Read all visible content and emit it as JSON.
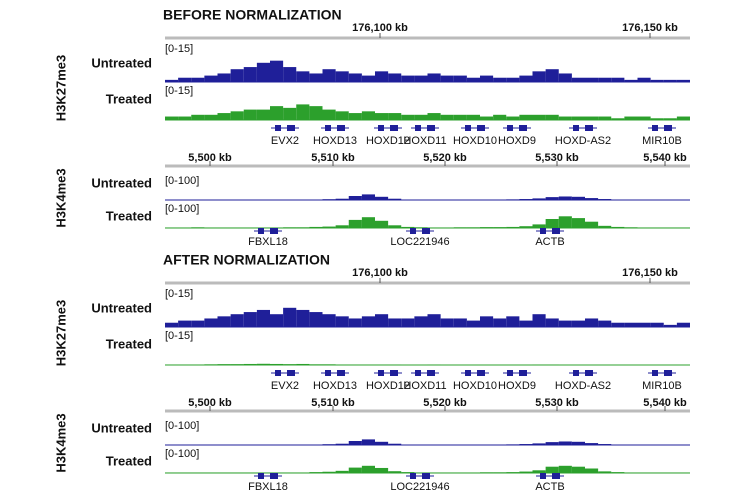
{
  "panels": [
    {
      "title": "BEFORE NORMALIZATION",
      "groups": [
        {
          "mark": "H3K27me3",
          "ticks": [
            "176,100 kb",
            "176,150 kb"
          ],
          "tracks": [
            {
              "label": "Untreated",
              "range": "[0-15]",
              "color": "#1f1f99",
              "signal": [
                1,
                2,
                2,
                3,
                4,
                6,
                7,
                9,
                10,
                7,
                5,
                4,
                6,
                5,
                4,
                3,
                5,
                4,
                3,
                3,
                4,
                3,
                3,
                2,
                3,
                2,
                2,
                3,
                5,
                6,
                4,
                2,
                2,
                2,
                2,
                1,
                2,
                1,
                1,
                1
              ]
            },
            {
              "label": "Treated",
              "range": "[0-15]",
              "color": "#2ca02c",
              "signal": [
                2,
                2,
                3,
                3,
                4,
                5,
                6,
                6,
                8,
                7,
                9,
                8,
                6,
                5,
                4,
                5,
                4,
                4,
                3,
                3,
                4,
                3,
                3,
                3,
                2,
                3,
                2,
                3,
                3,
                3,
                2,
                2,
                2,
                2,
                1,
                2,
                2,
                1,
                1,
                2
              ]
            }
          ],
          "genes": [
            "EVX2",
            "HOXD13",
            "HOXD12",
            "HOXD11",
            "HOXD10",
            "HOXD9",
            "HOXD-AS2",
            "MIR10B"
          ]
        },
        {
          "mark": "H3K4me3",
          "ticks": [
            "5,500 kb",
            "5,510 kb",
            "5,520 kb",
            "5,530 kb",
            "5,540 kb"
          ],
          "tracks": [
            {
              "label": "Untreated",
              "range": "[0-100]",
              "color": "#1f1f99",
              "signal": [
                2,
                2,
                2,
                2,
                2,
                2,
                2,
                2,
                2,
                2,
                3,
                3,
                5,
                8,
                25,
                35,
                20,
                8,
                3,
                2,
                2,
                2,
                2,
                2,
                3,
                3,
                4,
                6,
                10,
                18,
                22,
                20,
                12,
                6,
                3,
                2,
                2,
                2,
                2,
                2
              ]
            },
            {
              "label": "Treated",
              "range": "[0-100]",
              "color": "#2ca02c",
              "signal": [
                3,
                3,
                4,
                3,
                3,
                3,
                3,
                3,
                3,
                4,
                4,
                6,
                8,
                15,
                45,
                60,
                40,
                15,
                6,
                4,
                3,
                3,
                4,
                4,
                5,
                5,
                6,
                10,
                20,
                50,
                65,
                55,
                35,
                12,
                6,
                4,
                3,
                3,
                3,
                3
              ]
            }
          ],
          "genes": [
            "FBXL18",
            "LOC221946",
            "ACTB"
          ]
        }
      ]
    },
    {
      "title": "AFTER NORMALIZATION",
      "groups": [
        {
          "mark": "H3K27me3",
          "ticks": [
            "176,100 kb",
            "176,150 kb"
          ],
          "tracks": [
            {
              "label": "Untreated",
              "range": "[0-15]",
              "color": "#1f1f99",
              "signal": [
                2,
                3,
                3,
                4,
                5,
                6,
                7,
                8,
                6,
                9,
                8,
                7,
                6,
                5,
                4,
                5,
                6,
                4,
                4,
                5,
                6,
                4,
                4,
                3,
                5,
                4,
                5,
                3,
                6,
                4,
                3,
                3,
                4,
                3,
                2,
                2,
                2,
                2,
                1,
                2
              ]
            },
            {
              "label": "Treated",
              "range": "[0-15]",
              "color": "#2ca02c",
              "signal": [
                0.3,
                0.3,
                0.3,
                0.4,
                0.5,
                0.5,
                0.6,
                0.7,
                0.6,
                0.5,
                0.6,
                0.4,
                0.4,
                0.3,
                0.3,
                0.3,
                0.3,
                0.3,
                0.2,
                0.2,
                0.3,
                0.2,
                0.2,
                0.2,
                0.2,
                0.2,
                0.2,
                0.2,
                0.3,
                0.3,
                0.2,
                0.2,
                0.2,
                0.2,
                0.1,
                0.2,
                0.2,
                0.1,
                0.1,
                0.1
              ]
            }
          ],
          "genes": [
            "EVX2",
            "HOXD13",
            "HOXD12",
            "HOXD11",
            "HOXD10",
            "HOXD9",
            "HOXD-AS2",
            "MIR10B"
          ]
        },
        {
          "mark": "H3K4me3",
          "ticks": [
            "5,500 kb",
            "5,510 kb",
            "5,520 kb",
            "5,530 kb",
            "5,540 kb"
          ],
          "tracks": [
            {
              "label": "Untreated",
              "range": "[0-100]",
              "color": "#1f1f99",
              "signal": [
                2,
                2,
                2,
                2,
                2,
                2,
                2,
                2,
                2,
                2,
                3,
                3,
                5,
                8,
                25,
                35,
                20,
                8,
                3,
                2,
                2,
                2,
                2,
                2,
                3,
                3,
                4,
                6,
                10,
                18,
                22,
                20,
                12,
                6,
                3,
                2,
                2,
                2,
                2,
                2
              ]
            },
            {
              "label": "Treated",
              "range": "[0-100]",
              "color": "#2ca02c",
              "signal": [
                3,
                3,
                3,
                3,
                3,
                3,
                3,
                3,
                3,
                3,
                3,
                5,
                7,
                12,
                30,
                40,
                28,
                10,
                5,
                3,
                3,
                3,
                3,
                3,
                4,
                4,
                5,
                8,
                15,
                35,
                40,
                35,
                25,
                9,
                5,
                3,
                3,
                3,
                3,
                3
              ]
            }
          ],
          "genes": [
            "FBXL18",
            "LOC221946",
            "ACTB"
          ]
        }
      ]
    }
  ]
}
